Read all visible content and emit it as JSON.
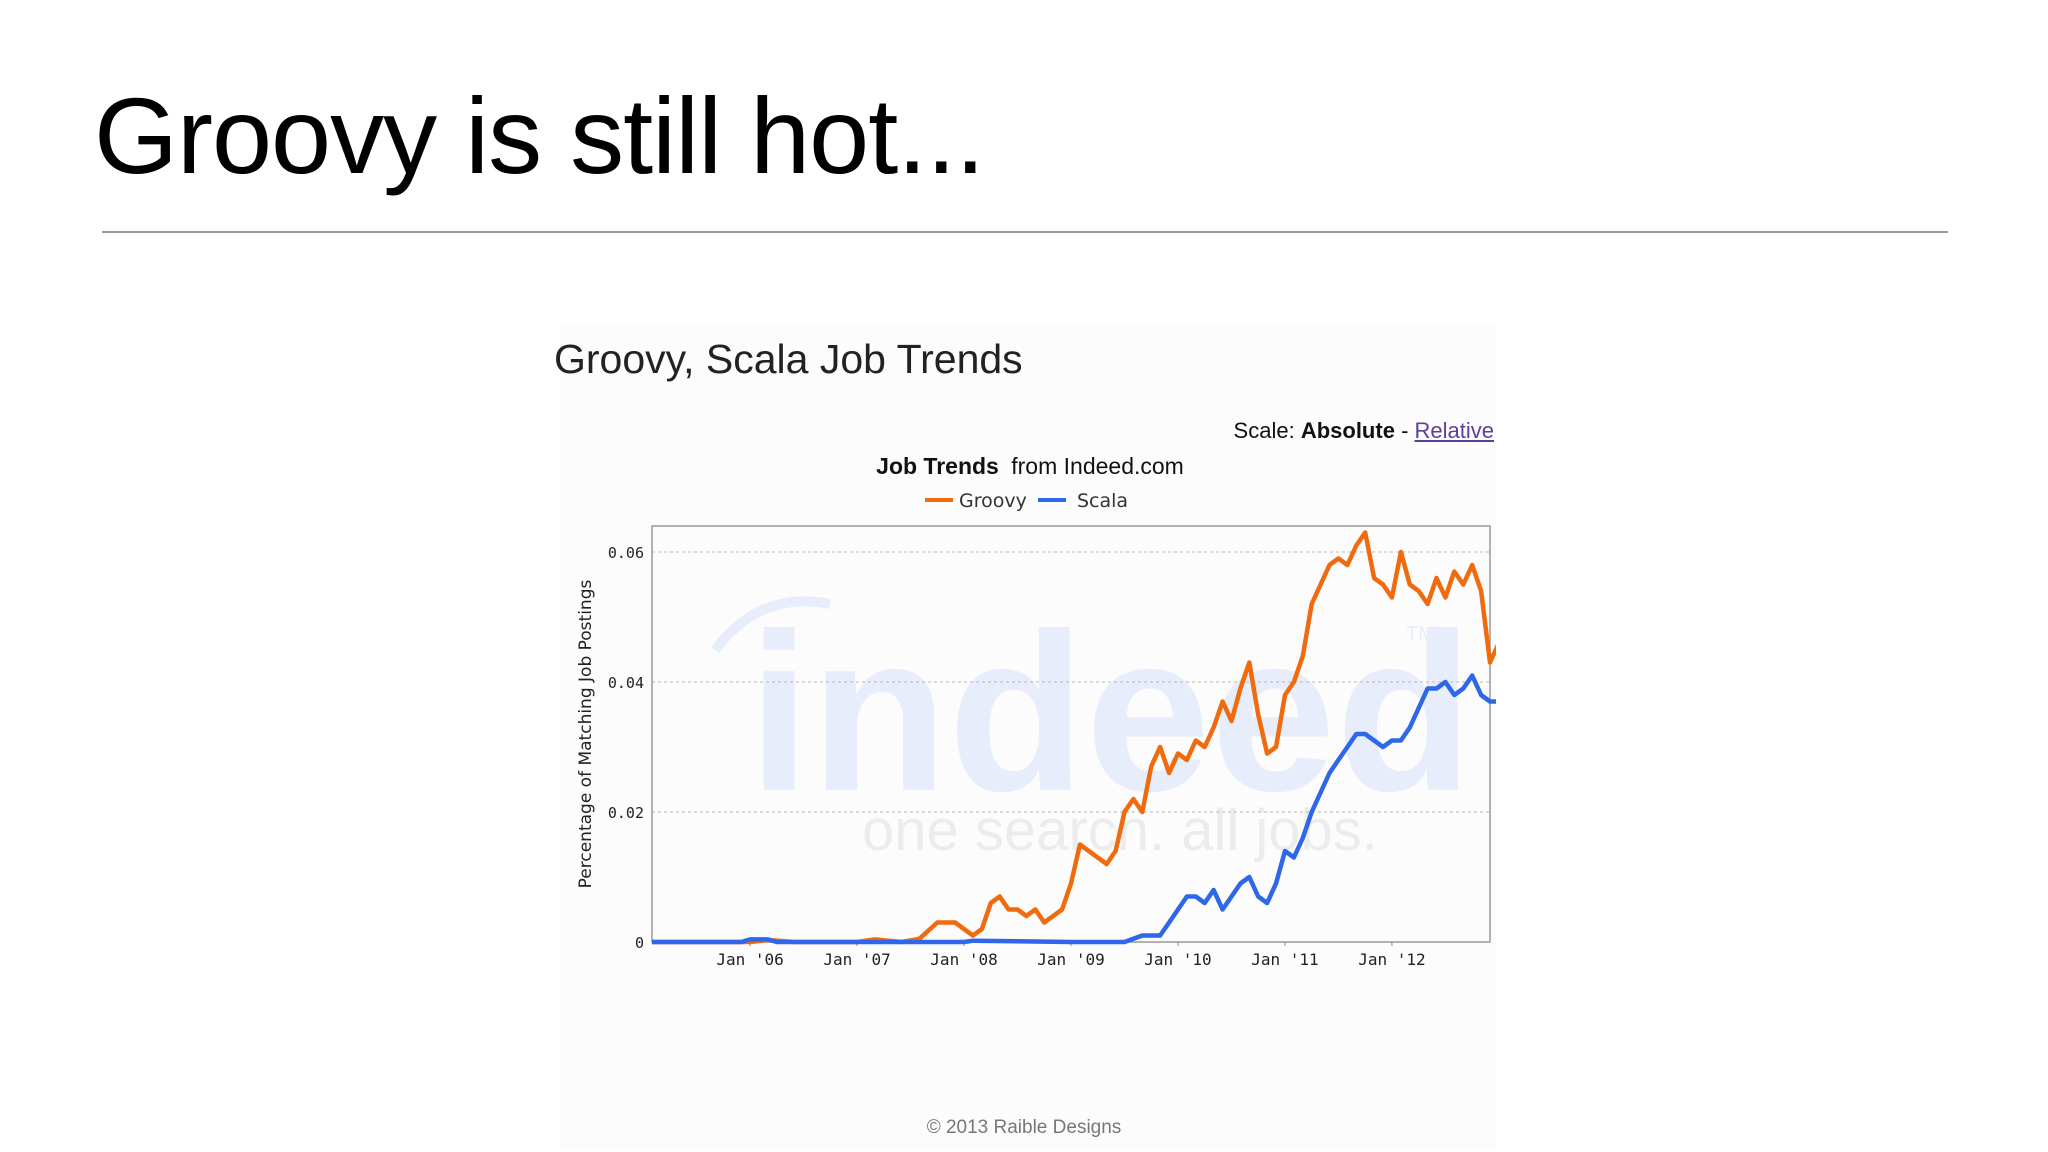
{
  "slide": {
    "title": "Groovy is still hot...",
    "footer": "© 2013 Raible Designs"
  },
  "chart_header": {
    "heading": "Groovy, Scala Job Trends",
    "scale_label": "Scale:",
    "scale_absolute": "Absolute",
    "scale_separator": "-",
    "scale_relative": "Relative",
    "source_bold": "Job Trends",
    "source_rest": "from Indeed.com"
  },
  "watermark": {
    "logo_text": "indeed",
    "tagline": "one search. all jobs.",
    "tm": "TM"
  },
  "colors": {
    "groovy": "#f06a0e",
    "scala": "#2f67ea",
    "link": "#5b3f9a"
  },
  "chart_data": {
    "type": "line",
    "title": "Job Trends from Indeed.com",
    "ylabel": "Percentage of Matching Job Postings",
    "xlabel": "",
    "xlim": [
      "2005-02",
      "2012-12"
    ],
    "ylim": [
      0,
      0.064
    ],
    "yticks": [
      "0",
      "0.02",
      "0.04",
      "0.06"
    ],
    "xticks": [
      "Jan '06",
      "Jan '07",
      "Jan '08",
      "Jan '09",
      "Jan '10",
      "Jan '11",
      "Jan '12"
    ],
    "grid": true,
    "legend_position": "top",
    "series": [
      {
        "name": "Groovy",
        "color": "#f06a0e",
        "points": [
          [
            "2005-02",
            0
          ],
          [
            "2006-01",
            0
          ],
          [
            "2006-03",
            0.0003
          ],
          [
            "2006-06",
            0
          ],
          [
            "2007-01",
            0
          ],
          [
            "2007-03",
            0.0004
          ],
          [
            "2007-06",
            0
          ],
          [
            "2007-08",
            0.0005
          ],
          [
            "2007-10",
            0.003
          ],
          [
            "2007-12",
            0.003
          ],
          [
            "2008-02",
            0.001
          ],
          [
            "2008-03",
            0.002
          ],
          [
            "2008-04",
            0.006
          ],
          [
            "2008-05",
            0.007
          ],
          [
            "2008-06",
            0.005
          ],
          [
            "2008-07",
            0.005
          ],
          [
            "2008-08",
            0.004
          ],
          [
            "2008-09",
            0.005
          ],
          [
            "2008-10",
            0.003
          ],
          [
            "2008-11",
            0.004
          ],
          [
            "2008-12",
            0.005
          ],
          [
            "2009-01",
            0.009
          ],
          [
            "2009-02",
            0.015
          ],
          [
            "2009-03",
            0.014
          ],
          [
            "2009-04",
            0.013
          ],
          [
            "2009-05",
            0.012
          ],
          [
            "2009-06",
            0.014
          ],
          [
            "2009-07",
            0.02
          ],
          [
            "2009-08",
            0.022
          ],
          [
            "2009-09",
            0.02
          ],
          [
            "2009-10",
            0.027
          ],
          [
            "2009-11",
            0.03
          ],
          [
            "2009-12",
            0.026
          ],
          [
            "2010-01",
            0.029
          ],
          [
            "2010-02",
            0.028
          ],
          [
            "2010-03",
            0.031
          ],
          [
            "2010-04",
            0.03
          ],
          [
            "2010-05",
            0.033
          ],
          [
            "2010-06",
            0.037
          ],
          [
            "2010-07",
            0.034
          ],
          [
            "2010-08",
            0.039
          ],
          [
            "2010-09",
            0.043
          ],
          [
            "2010-10",
            0.035
          ],
          [
            "2010-11",
            0.029
          ],
          [
            "2010-12",
            0.03
          ],
          [
            "2011-01",
            0.038
          ],
          [
            "2011-02",
            0.04
          ],
          [
            "2011-03",
            0.044
          ],
          [
            "2011-04",
            0.052
          ],
          [
            "2011-05",
            0.055
          ],
          [
            "2011-06",
            0.058
          ],
          [
            "2011-07",
            0.059
          ],
          [
            "2011-08",
            0.058
          ],
          [
            "2011-09",
            0.061
          ],
          [
            "2011-10",
            0.063
          ],
          [
            "2011-11",
            0.056
          ],
          [
            "2011-12",
            0.055
          ],
          [
            "2012-01",
            0.053
          ],
          [
            "2012-02",
            0.06
          ],
          [
            "2012-03",
            0.055
          ],
          [
            "2012-04",
            0.054
          ],
          [
            "2012-05",
            0.052
          ],
          [
            "2012-06",
            0.056
          ],
          [
            "2012-07",
            0.053
          ],
          [
            "2012-08",
            0.057
          ],
          [
            "2012-09",
            0.055
          ],
          [
            "2012-10",
            0.058
          ],
          [
            "2012-11",
            0.054
          ],
          [
            "2012-12",
            0.043
          ],
          [
            "2013-01",
            0.046
          ]
        ]
      },
      {
        "name": "Scala",
        "color": "#2f67ea",
        "points": [
          [
            "2005-02",
            0
          ],
          [
            "2005-12",
            0
          ],
          [
            "2006-01",
            0.0004
          ],
          [
            "2006-03",
            0.0004
          ],
          [
            "2006-04",
            0
          ],
          [
            "2008-01",
            0
          ],
          [
            "2008-02",
            0.0002
          ],
          [
            "2009-01",
            0
          ],
          [
            "2009-07",
            0
          ],
          [
            "2009-09",
            0.001
          ],
          [
            "2009-11",
            0.001
          ],
          [
            "2009-12",
            0.003
          ],
          [
            "2010-01",
            0.005
          ],
          [
            "2010-02",
            0.007
          ],
          [
            "2010-03",
            0.007
          ],
          [
            "2010-04",
            0.006
          ],
          [
            "2010-05",
            0.008
          ],
          [
            "2010-06",
            0.005
          ],
          [
            "2010-07",
            0.007
          ],
          [
            "2010-08",
            0.009
          ],
          [
            "2010-09",
            0.01
          ],
          [
            "2010-10",
            0.007
          ],
          [
            "2010-11",
            0.006
          ],
          [
            "2010-12",
            0.009
          ],
          [
            "2011-01",
            0.014
          ],
          [
            "2011-02",
            0.013
          ],
          [
            "2011-03",
            0.016
          ],
          [
            "2011-04",
            0.02
          ],
          [
            "2011-05",
            0.023
          ],
          [
            "2011-06",
            0.026
          ],
          [
            "2011-07",
            0.028
          ],
          [
            "2011-08",
            0.03
          ],
          [
            "2011-09",
            0.032
          ],
          [
            "2011-10",
            0.032
          ],
          [
            "2011-11",
            0.031
          ],
          [
            "2011-12",
            0.03
          ],
          [
            "2012-01",
            0.031
          ],
          [
            "2012-02",
            0.031
          ],
          [
            "2012-03",
            0.033
          ],
          [
            "2012-04",
            0.036
          ],
          [
            "2012-05",
            0.039
          ],
          [
            "2012-06",
            0.039
          ],
          [
            "2012-07",
            0.04
          ],
          [
            "2012-08",
            0.038
          ],
          [
            "2012-09",
            0.039
          ],
          [
            "2012-10",
            0.041
          ],
          [
            "2012-11",
            0.038
          ],
          [
            "2012-12",
            0.037
          ],
          [
            "2013-01",
            0.037
          ]
        ]
      }
    ]
  }
}
